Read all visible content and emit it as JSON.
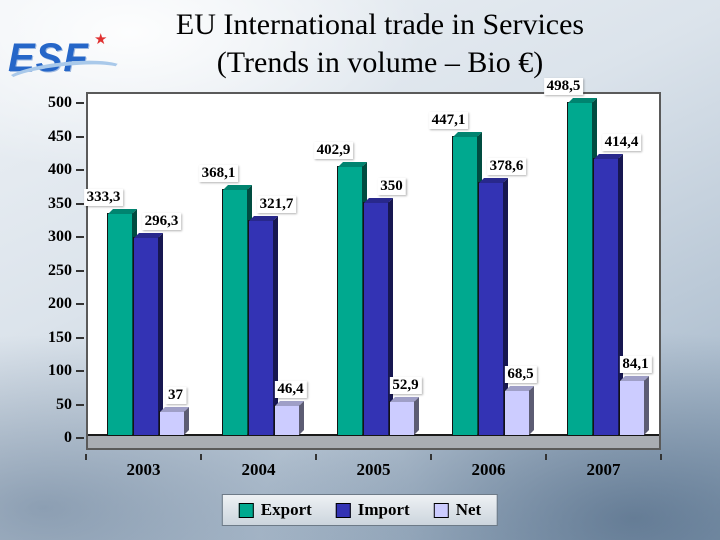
{
  "slide": {
    "title_line1": "EU International trade in Services",
    "title_line2": "(Trends in volume – Bio €)",
    "logo_text": "ESF",
    "logo_star_icon": "★"
  },
  "chart_data": {
    "type": "bar",
    "title": "EU International trade in Services (Trends in volume – Bio €)",
    "categories": [
      "2003",
      "2004",
      "2005",
      "2006",
      "2007"
    ],
    "series": [
      {
        "name": "Export",
        "color": "#00A98F",
        "values": [
          333.3,
          368.1,
          402.9,
          447.1,
          498.5
        ],
        "labels": [
          "333,3",
          "368,1",
          "402,9",
          "447,1",
          "498,5"
        ]
      },
      {
        "name": "Import",
        "color": "#3333B4",
        "values": [
          296.3,
          321.7,
          350,
          378.6,
          414.4
        ],
        "labels": [
          "296,3",
          "321,7",
          "350",
          "378,6",
          "414,4"
        ]
      },
      {
        "name": "Net",
        "color": "#CCCCFF",
        "values": [
          37,
          46.4,
          52.9,
          68.5,
          84.1
        ],
        "labels": [
          "37",
          "46,4",
          "52,9",
          "68,5",
          "84,1"
        ]
      }
    ],
    "xlabel": "",
    "ylabel": "",
    "ylim": [
      0,
      500
    ],
    "ytick_step": 50,
    "yticks": [
      "500",
      "450",
      "400",
      "350",
      "300",
      "250",
      "200",
      "150",
      "100",
      "50",
      "0"
    ],
    "legend_position": "bottom",
    "grid": false
  }
}
